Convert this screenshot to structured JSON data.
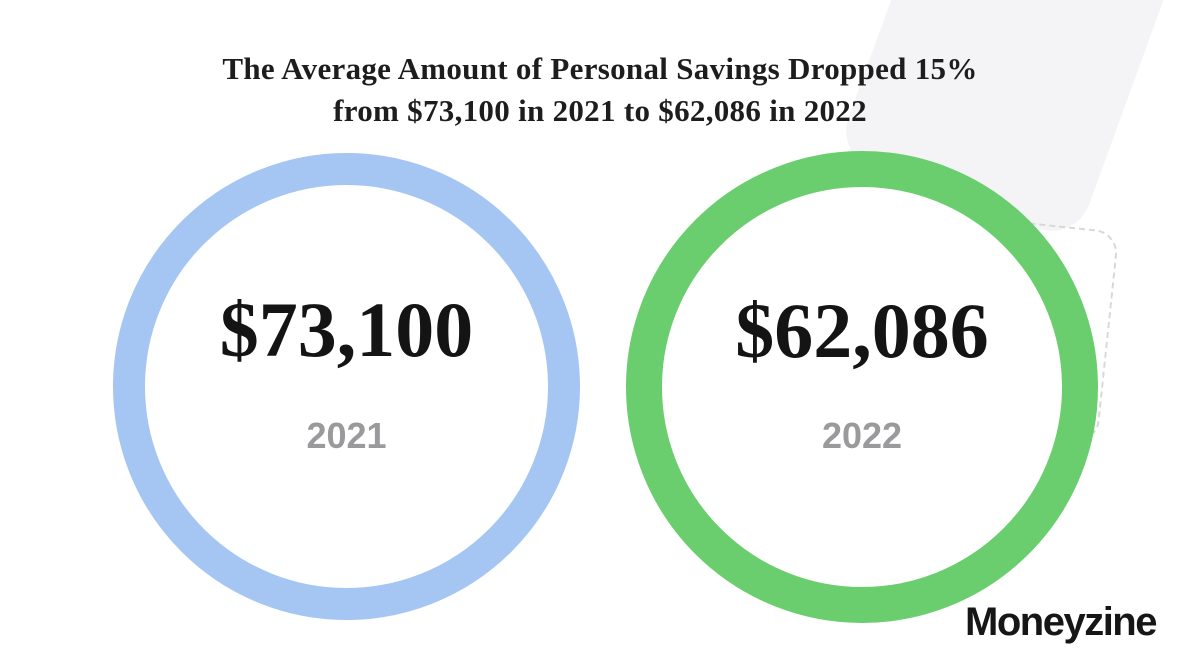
{
  "header": {
    "line1": "The Average Amount of Personal Savings Dropped 15%",
    "line2": "from $73,100 in 2021 to $62,086 in 2022"
  },
  "circles": [
    {
      "amount": "$73,100",
      "year": "2021",
      "ring_color": "#a5c6f2"
    },
    {
      "amount": "$62,086",
      "year": "2022",
      "ring_color": "#6bce6e"
    }
  ],
  "logo": {
    "text": "Moneyzine"
  },
  "colors": {
    "title_text": "#1d1d1d",
    "amount_text": "#141414",
    "year_text": "#9a9a9c",
    "ring_blue": "#a5c6f2",
    "ring_green": "#6bce6e",
    "background": "#ffffff",
    "decor_card": "#f4f4f6",
    "decor_dash": "#d8d8d8"
  },
  "chart_data": {
    "type": "bar",
    "variant": "circle-comparison-infographic",
    "title": "The Average Amount of Personal Savings Dropped 15% from $73,100 in 2021 to $62,086 in 2022",
    "categories": [
      "2021",
      "2022"
    ],
    "values": [
      73100,
      62086
    ],
    "value_labels": [
      "$73,100",
      "$62,086"
    ],
    "series_colors": [
      "#a5c6f2",
      "#6bce6e"
    ],
    "change_percent": -15,
    "xlabel": "",
    "ylabel": "",
    "legend": "none",
    "grid": false
  }
}
